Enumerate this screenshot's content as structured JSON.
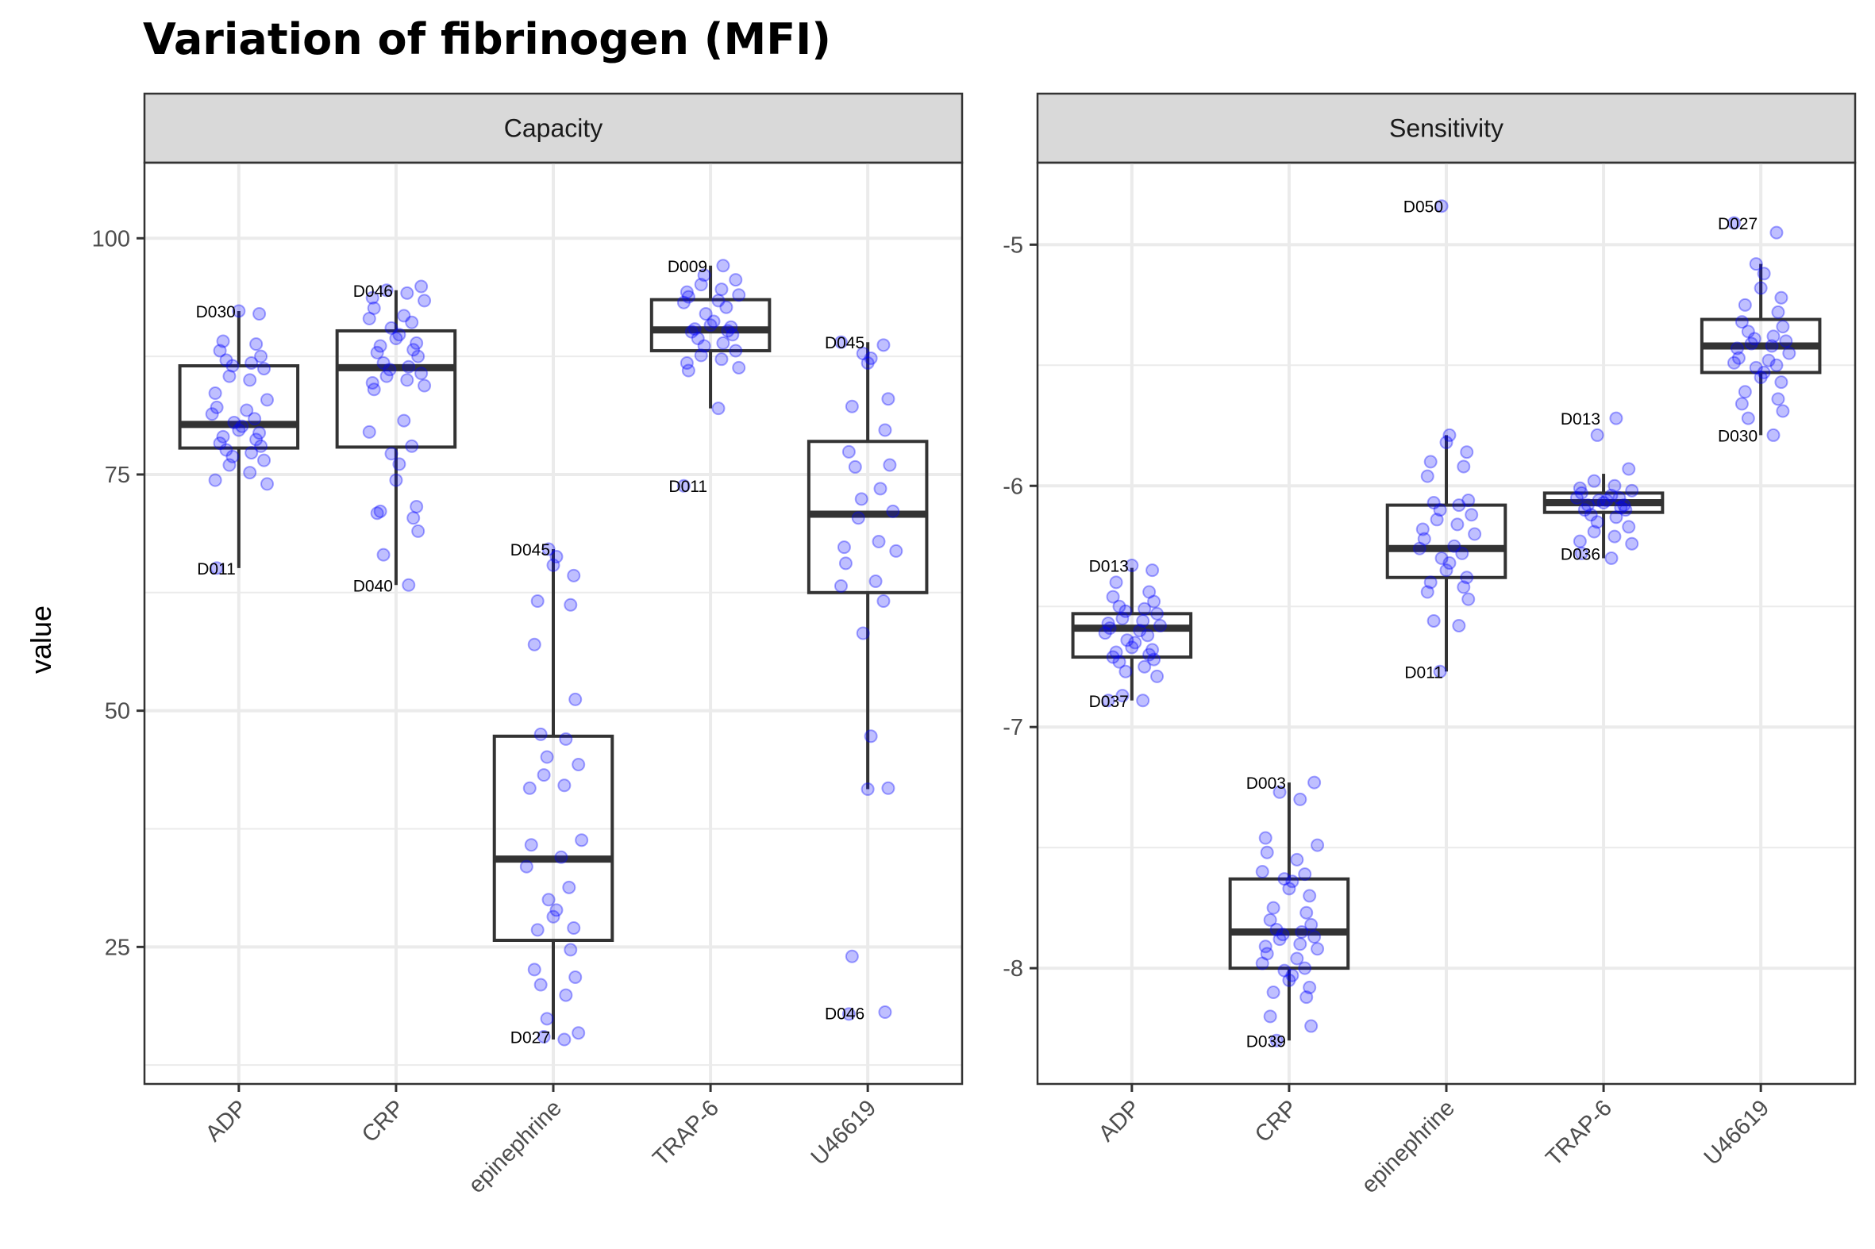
{
  "title": "Variation of fibrinogen (MFI)",
  "ylabel": "value",
  "colors": {
    "point": "#0000ff",
    "box": "#333333",
    "strip": "#d9d9d9",
    "grid": "#ebebeb"
  },
  "chart_data": [
    {
      "type": "box",
      "panel": "Capacity",
      "categories": [
        "ADP",
        "CRP",
        "epinephrine",
        "TRAP-6",
        "U46619"
      ],
      "y_ticks": [
        "100",
        "75",
        "50",
        "25"
      ],
      "y_tick_values": [
        100,
        75,
        50,
        25
      ],
      "ylim": [
        10.5,
        108
      ],
      "boxes": [
        {
          "q1": 77.8,
          "median": 80.3,
          "q3": 86.5,
          "whisker_low": 65.1,
          "whisker_high": 92.3
        },
        {
          "q1": 77.9,
          "median": 86.3,
          "q3": 90.2,
          "whisker_low": 63.3,
          "whisker_high": 94.5
        },
        {
          "q1": 25.7,
          "median": 34.3,
          "q3": 47.3,
          "whisker_low": 15.2,
          "whisker_high": 67.1
        },
        {
          "q1": 88.1,
          "median": 90.3,
          "q3": 93.5,
          "whisker_low": 82.0,
          "whisker_high": 97.1
        },
        {
          "q1": 62.5,
          "median": 70.8,
          "q3": 78.5,
          "whisker_low": 41.7,
          "whisker_high": 89.0
        }
      ],
      "points": [
        [
          92.3,
          92.0,
          89.1,
          88.8,
          88.1,
          87.5,
          87.1,
          86.8,
          86.5,
          86.2,
          85.4,
          85.0,
          83.6,
          82.9,
          82.1,
          81.8,
          81.4,
          80.9,
          80.5,
          80.1,
          79.7,
          79.4,
          79.0,
          78.7,
          78.3,
          78.0,
          77.6,
          77.3,
          76.9,
          76.5,
          76.0,
          75.2,
          74.4,
          74.0,
          65.1
        ],
        [
          94.9,
          94.5,
          94.2,
          93.7,
          93.4,
          92.6,
          91.8,
          91.5,
          91.1,
          90.5,
          89.8,
          89.4,
          88.9,
          88.6,
          88.2,
          87.9,
          87.5,
          86.8,
          86.4,
          86.1,
          85.7,
          85.4,
          85.0,
          84.7,
          84.4,
          84.0,
          80.7,
          79.5,
          78.0,
          77.2,
          76.1,
          74.4,
          71.6,
          71.1,
          70.4,
          70.9,
          69.0,
          66.5,
          63.3
        ],
        [
          67.1,
          66.3,
          65.4,
          64.3,
          61.6,
          61.2,
          57.0,
          51.2,
          47.5,
          47.0,
          45.1,
          44.3,
          43.2,
          42.1,
          41.8,
          36.3,
          35.8,
          34.5,
          33.5,
          31.3,
          30.0,
          28.9,
          28.2,
          27.0,
          26.8,
          24.7,
          22.6,
          21.8,
          21.0,
          19.9,
          17.4,
          15.9,
          15.5,
          15.2
        ],
        [
          97.1,
          96.1,
          95.6,
          95.1,
          94.6,
          94.3,
          94.0,
          93.8,
          93.4,
          93.2,
          92.7,
          92.0,
          91.2,
          90.8,
          90.6,
          90.4,
          90.2,
          90.1,
          89.8,
          89.4,
          88.9,
          88.6,
          88.1,
          87.6,
          87.2,
          86.8,
          86.3,
          86.0,
          82.0,
          73.8
        ],
        [
          89.0,
          88.7,
          87.8,
          87.3,
          86.8,
          83.0,
          82.2,
          79.7,
          77.4,
          76.0,
          75.8,
          73.5,
          72.4,
          71.1,
          70.4,
          67.9,
          67.3,
          66.9,
          65.6,
          63.7,
          63.2,
          61.6,
          58.2,
          47.3,
          41.7,
          41.8,
          24.0,
          18.1,
          17.9
        ]
      ],
      "annotations": [
        {
          "text": "D030",
          "cat": 0,
          "y": 92.3
        },
        {
          "text": "D011",
          "cat": 0,
          "y": 65.1
        },
        {
          "text": "D046",
          "cat": 1,
          "y": 94.5
        },
        {
          "text": "D040",
          "cat": 1,
          "y": 63.3
        },
        {
          "text": "D045",
          "cat": 2,
          "y": 67.1
        },
        {
          "text": "D027",
          "cat": 2,
          "y": 15.5
        },
        {
          "text": "D009",
          "cat": 3,
          "y": 97.1
        },
        {
          "text": "D011",
          "cat": 3,
          "y": 73.8
        },
        {
          "text": "D045",
          "cat": 4,
          "y": 89.0
        },
        {
          "text": "D046",
          "cat": 4,
          "y": 18.0
        }
      ]
    },
    {
      "type": "box",
      "panel": "Sensitivity",
      "categories": [
        "ADP",
        "CRP",
        "epinephrine",
        "TRAP-6",
        "U46619"
      ],
      "y_ticks": [
        "-5",
        "-6",
        "-7",
        "-8"
      ],
      "y_tick_values": [
        -5,
        -6,
        -7,
        -8
      ],
      "ylim": [
        -8.48,
        -4.66
      ],
      "boxes": [
        {
          "q1": -6.71,
          "median": -6.59,
          "q3": -6.53,
          "whisker_low": -6.89,
          "whisker_high": -6.34
        },
        {
          "q1": -8.0,
          "median": -7.85,
          "q3": -7.63,
          "whisker_low": -8.3,
          "whisker_high": -7.23
        },
        {
          "q1": -6.38,
          "median": -6.26,
          "q3": -6.08,
          "whisker_low": -6.77,
          "whisker_high": -5.79
        },
        {
          "q1": -6.11,
          "median": -6.07,
          "q3": -6.03,
          "whisker_low": -6.3,
          "whisker_high": -5.95
        },
        {
          "q1": -5.53,
          "median": -5.42,
          "q3": -5.31,
          "whisker_low": -5.79,
          "whisker_high": -5.08
        }
      ],
      "points": [
        [
          -6.33,
          -6.35,
          -6.4,
          -6.44,
          -6.46,
          -6.48,
          -6.5,
          -6.51,
          -6.52,
          -6.53,
          -6.55,
          -6.56,
          -6.57,
          -6.58,
          -6.59,
          -6.6,
          -6.61,
          -6.62,
          -6.64,
          -6.65,
          -6.67,
          -6.68,
          -6.69,
          -6.7,
          -6.71,
          -6.72,
          -6.73,
          -6.75,
          -6.77,
          -6.79,
          -6.87,
          -6.89,
          -6.89
        ],
        [
          -7.23,
          -7.27,
          -7.3,
          -7.46,
          -7.49,
          -7.52,
          -7.55,
          -7.6,
          -7.61,
          -7.63,
          -7.64,
          -7.67,
          -7.7,
          -7.75,
          -7.77,
          -7.8,
          -7.82,
          -7.84,
          -7.85,
          -7.86,
          -7.87,
          -7.88,
          -7.9,
          -7.91,
          -7.92,
          -7.94,
          -7.96,
          -7.98,
          -8.0,
          -8.01,
          -8.03,
          -8.05,
          -8.08,
          -8.1,
          -8.12,
          -8.2,
          -8.24,
          -8.3
        ],
        [
          -4.84,
          -5.79,
          -5.82,
          -5.86,
          -5.9,
          -5.92,
          -5.96,
          -6.06,
          -6.07,
          -6.08,
          -6.1,
          -6.12,
          -6.14,
          -6.16,
          -6.18,
          -6.2,
          -6.22,
          -6.25,
          -6.26,
          -6.28,
          -6.3,
          -6.32,
          -6.35,
          -6.38,
          -6.4,
          -6.42,
          -6.44,
          -6.47,
          -6.56,
          -6.58,
          -6.77
        ],
        [
          -5.72,
          -5.79,
          -5.93,
          -5.98,
          -6.0,
          -6.01,
          -6.02,
          -6.03,
          -6.04,
          -6.05,
          -6.05,
          -6.06,
          -6.06,
          -6.07,
          -6.08,
          -6.08,
          -6.09,
          -6.1,
          -6.1,
          -6.12,
          -6.13,
          -6.15,
          -6.17,
          -6.19,
          -6.21,
          -6.23,
          -6.24,
          -6.28,
          -6.3
        ],
        [
          -4.91,
          -4.95,
          -5.08,
          -5.12,
          -5.18,
          -5.22,
          -5.25,
          -5.28,
          -5.32,
          -5.34,
          -5.36,
          -5.38,
          -5.39,
          -5.4,
          -5.41,
          -5.42,
          -5.43,
          -5.45,
          -5.47,
          -5.48,
          -5.49,
          -5.5,
          -5.51,
          -5.53,
          -5.55,
          -5.57,
          -5.61,
          -5.64,
          -5.66,
          -5.69,
          -5.72,
          -5.79
        ]
      ],
      "annotations": [
        {
          "text": "D013",
          "cat": 0,
          "y": -6.33
        },
        {
          "text": "D037",
          "cat": 0,
          "y": -6.89
        },
        {
          "text": "D003",
          "cat": 1,
          "y": -7.23
        },
        {
          "text": "D039",
          "cat": 1,
          "y": -8.3
        },
        {
          "text": "D050",
          "cat": 2,
          "y": -4.84
        },
        {
          "text": "D011",
          "cat": 2,
          "y": -6.77
        },
        {
          "text": "D013",
          "cat": 3,
          "y": -5.72
        },
        {
          "text": "D036",
          "cat": 3,
          "y": -6.28
        },
        {
          "text": "D027",
          "cat": 4,
          "y": -4.91
        },
        {
          "text": "D030",
          "cat": 4,
          "y": -5.79
        }
      ]
    }
  ]
}
